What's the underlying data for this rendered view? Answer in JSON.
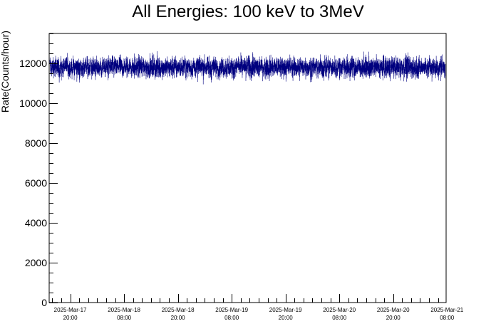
{
  "chart_data": {
    "type": "line",
    "title": "All Energies:  100 keV to 3MeV",
    "xlabel": "",
    "ylabel": "Rate(Counts/hour)",
    "ylim": [
      0,
      13500
    ],
    "yticks": [
      0,
      2000,
      4000,
      6000,
      8000,
      10000,
      12000
    ],
    "xlim_hours_from_first_label": [
      -4.7,
      83.8
    ],
    "xticks": [
      {
        "date": "2025-Mar-17",
        "time": "20:00"
      },
      {
        "date": "2025-Mar-18",
        "time": "08:00"
      },
      {
        "date": "2025-Mar-18",
        "time": "20:00"
      },
      {
        "date": "2025-Mar-19",
        "time": "08:00"
      },
      {
        "date": "2025-Mar-19",
        "time": "20:00"
      },
      {
        "date": "2025-Mar-20",
        "time": "08:00"
      },
      {
        "date": "2025-Mar-20",
        "time": "20:00"
      },
      {
        "date": "2025-Mar-21",
        "time": "08:00"
      }
    ],
    "series": [
      {
        "color": "#00007f",
        "mean": 11800,
        "typical_range": [
          11200,
          12400
        ],
        "min_observed": 10800,
        "max_observed": 12900
      }
    ],
    "grid": false,
    "legend": "none"
  }
}
